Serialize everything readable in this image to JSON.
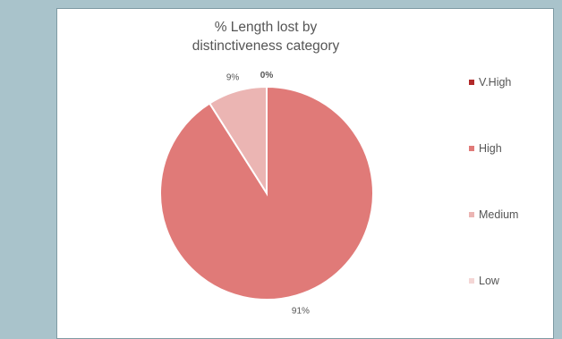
{
  "chart_data": {
    "type": "pie",
    "title_lines": [
      "% Length lost by",
      "distinctiveness category"
    ],
    "series": [
      {
        "name": "V.High",
        "value": 0,
        "label": "0%",
        "color": "#b22a2a"
      },
      {
        "name": "High",
        "value": 91,
        "label": "91%",
        "color": "#e07a78"
      },
      {
        "name": "Medium",
        "value": 9,
        "label": "9%",
        "color": "#ebb5b3"
      },
      {
        "name": "Low",
        "value": 0,
        "label": "",
        "color": "#f4d6d5"
      }
    ],
    "legend_position": "right"
  }
}
